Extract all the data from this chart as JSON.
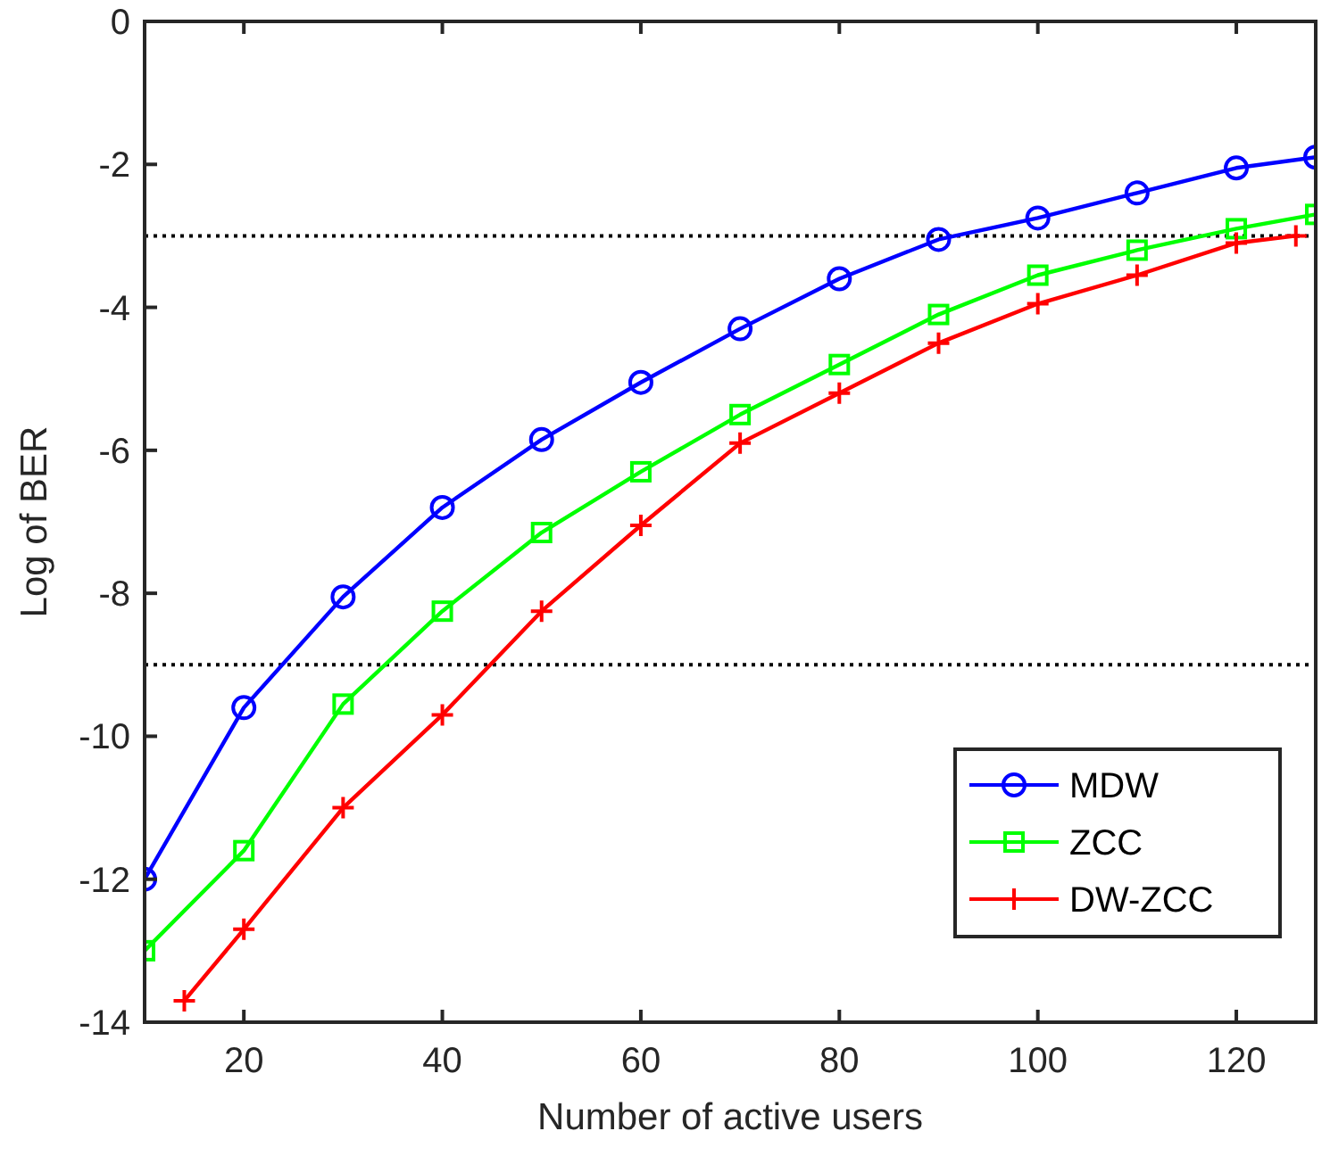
{
  "chart_data": {
    "type": "line",
    "xlabel": "Number of active users",
    "ylabel": "Log of BER",
    "xlim": [
      10,
      128
    ],
    "xticks": [
      20,
      40,
      60,
      80,
      100,
      120
    ],
    "ylim": [
      -14,
      0
    ],
    "yticks": [
      -14,
      -12,
      -10,
      -8,
      -6,
      -4,
      -2,
      0
    ],
    "grid": false,
    "legend": "bottom right",
    "line_style": "solid",
    "series": [
      {
        "name": "MDW",
        "color": "#0000ff",
        "marker": "circle",
        "x": [
          10,
          20,
          30,
          40,
          50,
          60,
          70,
          80,
          90,
          100,
          110,
          120,
          128
        ],
        "values": [
          -12,
          -9.6,
          -8.05,
          -6.8,
          -5.85,
          -5.05,
          -4.3,
          -3.6,
          -3.05,
          -2.75,
          -2.4,
          -2.05,
          -1.9
        ]
      },
      {
        "name": "ZCC",
        "color": "#00ff00",
        "marker": "square",
        "x": [
          10,
          20,
          30,
          40,
          50,
          60,
          70,
          80,
          90,
          100,
          110,
          120,
          128
        ],
        "values": [
          -13,
          -11.6,
          -9.55,
          -8.25,
          -7.15,
          -6.3,
          -5.5,
          -4.8,
          -4.1,
          -3.55,
          -3.2,
          -2.9,
          -2.7
        ]
      },
      {
        "name": "DW-ZCC",
        "color": "#ff0000",
        "marker": "cross",
        "x": [
          14,
          20,
          30,
          40,
          50,
          60,
          70,
          80,
          90,
          100,
          110,
          120,
          126
        ],
        "values": [
          -13.7,
          -12.7,
          -11,
          -9.7,
          -8.25,
          -7.05,
          -5.9,
          -5.2,
          -4.5,
          -3.95,
          -3.55,
          -3.1,
          -3
        ]
      }
    ],
    "ref_lines": [
      {
        "axis": "y",
        "value": -3,
        "color": "#000000",
        "line_style": "dotted"
      },
      {
        "axis": "y",
        "value": -9,
        "color": "#000000",
        "line_style": "dotted"
      }
    ]
  }
}
